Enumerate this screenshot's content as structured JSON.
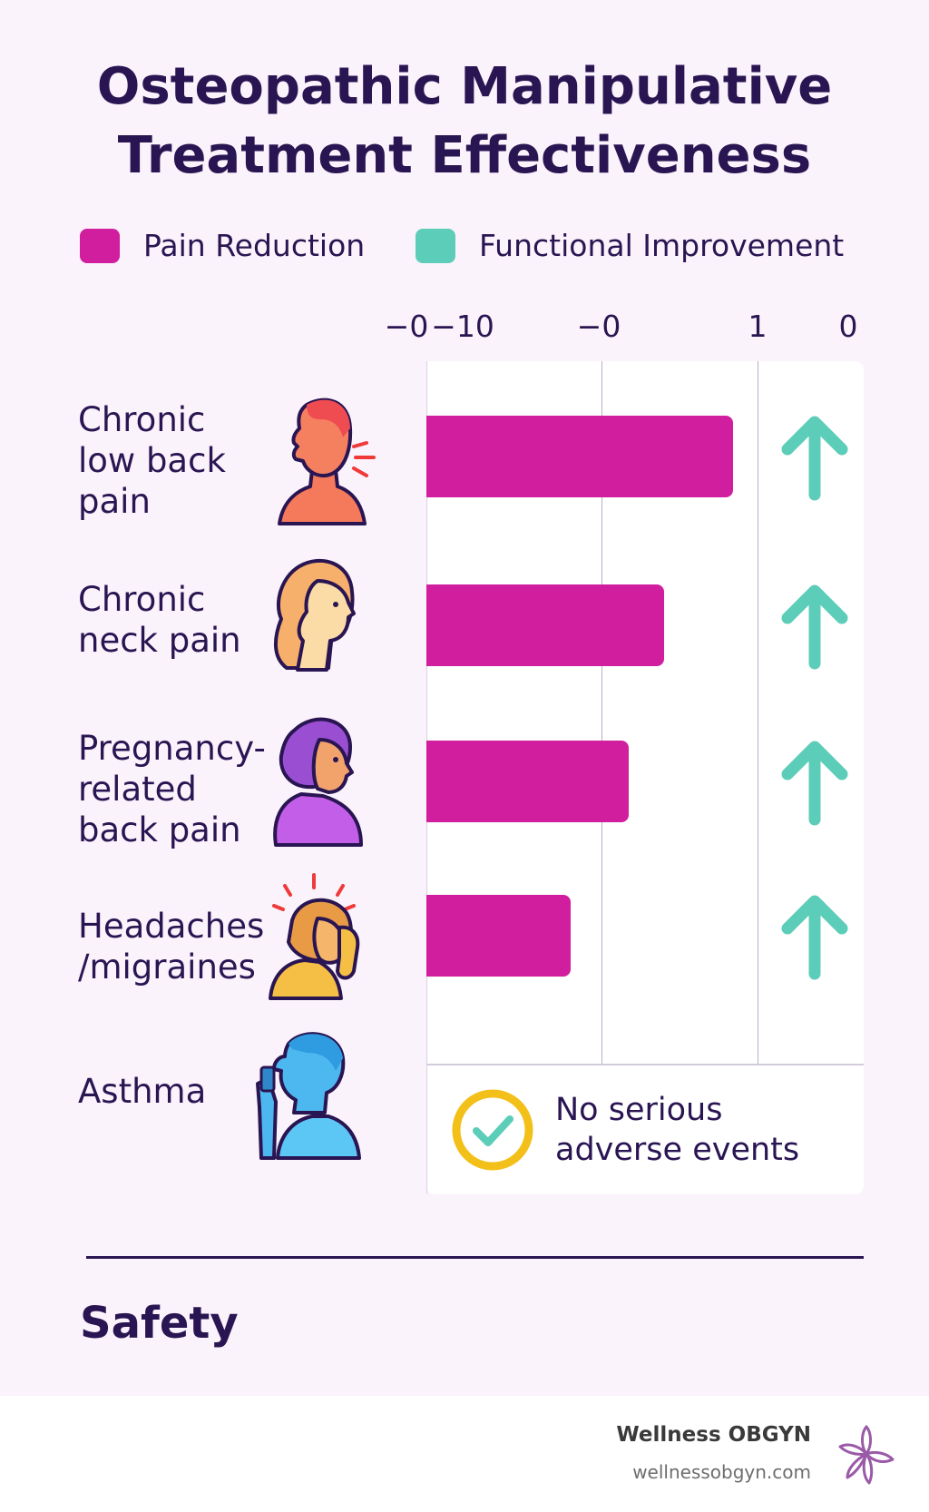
{
  "title_line1": "Osteopathic Manipulative",
  "title_line2": "Treatment Effectiveness",
  "legend": [
    {
      "label": "Pain Reduction",
      "color": "#d01e9e"
    },
    {
      "label": "Functional Improvement",
      "color": "#5ccdb8"
    }
  ],
  "chart_data": {
    "type": "bar",
    "orientation": "horizontal",
    "x_tick_labels": [
      "−0",
      "−10",
      "−0",
      "1",
      "0"
    ],
    "categories": [
      [
        "Chronic",
        "low back",
        "pain"
      ],
      [
        "Chronic",
        "neck pain"
      ],
      [
        "Pregnancy-",
        "related",
        "back pain"
      ],
      [
        "Headaches",
        "/migraines"
      ],
      [
        "Asthma"
      ]
    ],
    "series": [
      {
        "name": "Pain Reduction",
        "values": [
          0.88,
          0.41,
          0.17,
          -0.23,
          null
        ]
      },
      {
        "name": "Functional Improvement",
        "values": [
          "up",
          "up",
          "up",
          "up",
          null
        ]
      }
    ],
    "xlim": [
      -1.21,
      1.77
    ],
    "grid": "vertical",
    "legend_position": "top"
  },
  "category_icons": [
    "man-neck-pain-icon",
    "woman-neck-icon",
    "pregnant-woman-icon",
    "woman-headache-icon",
    "person-inhaler-icon"
  ],
  "safety_note_line1": "No serious",
  "safety_note_line2": "adverse events",
  "section_title": "Safety",
  "footer": {
    "brand": "Wellness OBGYN",
    "url": "wellnessobgyn.com"
  }
}
